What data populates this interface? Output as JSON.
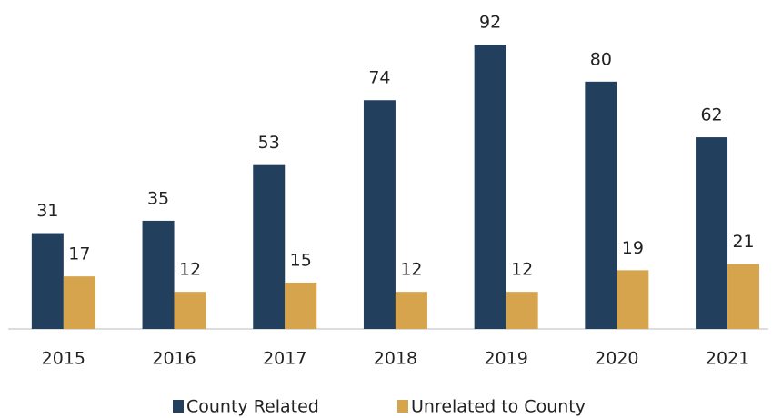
{
  "chart_data": {
    "type": "bar",
    "categories": [
      "2015",
      "2016",
      "2017",
      "2018",
      "2019",
      "2020",
      "2021"
    ],
    "series": [
      {
        "name": "County Related",
        "color": "#22405e",
        "values": [
          31,
          35,
          53,
          74,
          92,
          80,
          62
        ]
      },
      {
        "name": "Unrelated to County",
        "color": "#d6a44c",
        "values": [
          17,
          12,
          15,
          12,
          12,
          19,
          21
        ]
      }
    ],
    "legend": "bottom"
  }
}
